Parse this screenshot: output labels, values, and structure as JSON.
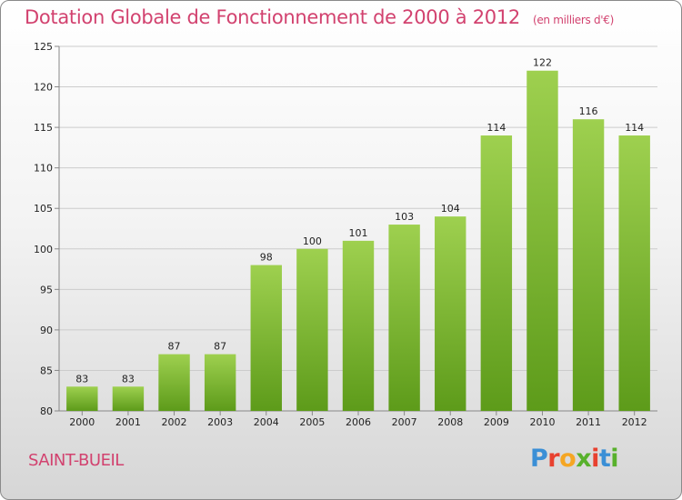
{
  "header": {
    "title": "Dotation Globale de Fonctionnement de 2000 à 2012",
    "unit": "(en milliers d'€)"
  },
  "commune": "SAINT-BUEIL",
  "logo": {
    "text": "Proxiti",
    "letter_colors": [
      "#3a8fd6",
      "#e8412f",
      "#f5a623",
      "#58b12c",
      "#e8412f",
      "#3a8fd6",
      "#58b12c"
    ]
  },
  "colors": {
    "title": "#d2426f",
    "bar_top": "#9ed04f",
    "bar_bottom": "#5d9b1a",
    "grid": "#cccccc"
  },
  "chart_data": {
    "type": "bar",
    "categories": [
      "2000",
      "2001",
      "2002",
      "2003",
      "2004",
      "2005",
      "2006",
      "2007",
      "2008",
      "2009",
      "2010",
      "2011",
      "2012"
    ],
    "values": [
      83,
      83,
      87,
      87,
      98,
      100,
      101,
      103,
      104,
      114,
      122,
      116,
      114
    ],
    "title": "Dotation Globale de Fonctionnement de 2000 à 2012",
    "ylim": [
      80,
      125
    ],
    "yticks": [
      80,
      85,
      90,
      95,
      100,
      105,
      110,
      115,
      120,
      125
    ],
    "grid": true
  }
}
